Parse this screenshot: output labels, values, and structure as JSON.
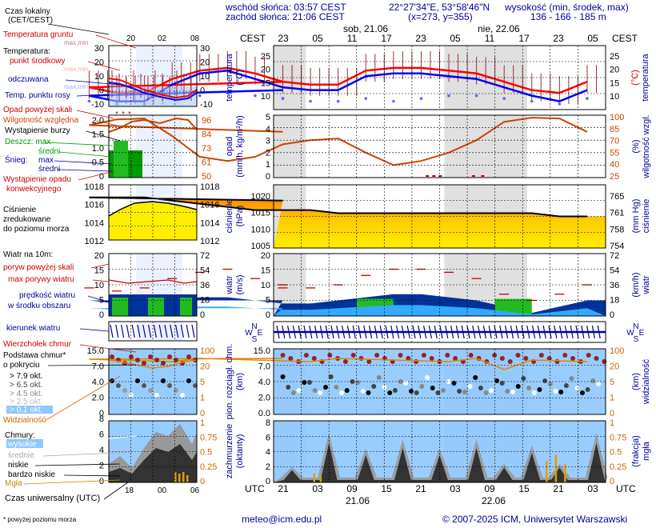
{
  "header": {
    "sunrise": "wschód słońca: 03:57 CEST",
    "sunset": "zachód słońca: 21:06 CEST",
    "coords": "22°27'34\"E, 53°58'46\"N",
    "grid": "(x=273, y=355)",
    "altitude_title": "wysokość (min, środek, max)",
    "altitude_values": "136 - 166 - 185 m"
  },
  "footer": {
    "note": "* powyżej poziomu morza",
    "email": "meteo@icm.edu.pl",
    "copyright": "© 2007-2025 ICM, Uniwersytet Warszawski"
  },
  "legend": {
    "czas_lokalny": "Czas lokalny",
    "cet_cest": "(CET/CEST)",
    "temp_gruntu": "Temperatura gruntu",
    "max_min": "max,min",
    "temperatura": "Temperatura:",
    "punkt_srodkowy": "punkt środkowy",
    "max_min2": "max,min",
    "odczuwana": "odczuwana",
    "max_min3": "max,min",
    "punkt_rosy": "Temp. punktu rosy",
    "opad_powyzej": "Opad powyżej skali",
    "wilgotnosc": "Wilgotność względna",
    "burza": "Wystąpienie burzy",
    "deszcz_max": "Deszcz: max",
    "deszcz_sredni": "średni",
    "snieg": "Śnieg:",
    "snieg_max": "max",
    "snieg_sredni": "średni",
    "wystapienie_opadu": "Wystąpienie opadu",
    "konwekcyjnego": "konwekcyjnego",
    "cisnienie": "Ciśnienie",
    "zredukowane": "zredukowane",
    "do_poziomu": "do poziomu morza",
    "wiatr_na": "Wiatr na 10m:",
    "poryw": "poryw powyżej skali",
    "max_porywy": "max porywy wiatru",
    "predkosc": "prędkość wiatru",
    "w_srodku": "w środku obszaru",
    "kierunek": "kierunek wiatru",
    "wierzcholek": "Wierzchołek chmur",
    "podstawa": "Podstawa chmur*",
    "o_pokryciu": "o pokryciu",
    "okt_79": "> 7.9 okt.",
    "okt_65": "> 6.5 okt.",
    "okt_45": "> 4.5 okt.",
    "okt_25": "> 2.5 okt.",
    "okt_01": "> 0.1 okt.",
    "widzialnosc": "Widzialność",
    "chmury": "Chmury:",
    "wysokie": "wysokie",
    "srednie": "średnie",
    "niskie": "niskie",
    "bardzo_niskie": "bardzo niskie",
    "mgla": "Mgła",
    "czas_uniwersalny": "Czas uniwersalny (UTC)"
  },
  "mini": {
    "top_hours": [
      "20",
      "02",
      "08"
    ],
    "bottom_hours": [
      "18",
      "00",
      "06"
    ],
    "temp_ticks": [
      "30",
      "20",
      "10",
      "0",
      "-10"
    ],
    "precip_ticks": [
      "2.0",
      "1.5",
      "1.0",
      "0.5",
      "0"
    ],
    "humidity_ticks": [
      "96",
      "84",
      "73",
      "61",
      "50"
    ],
    "pressure_ticks": [
      "1018",
      "1016",
      "1014",
      "1012"
    ],
    "wind_ms_ticks": [
      "20",
      "15",
      "10",
      "5",
      "0"
    ],
    "wind_kmh_ticks": [
      "72",
      "54",
      "36",
      "18",
      "0"
    ],
    "cloud_ticks": [
      "15.0",
      "7.0",
      "4.0",
      "2.0",
      "0"
    ],
    "vis_ticks": [
      "100",
      "20",
      "5",
      "1",
      "0"
    ],
    "oct_ticks": [
      "8",
      "6",
      "4",
      "2",
      "0"
    ],
    "fog_ticks": [
      "1",
      "0.75",
      "0.5",
      "0.25",
      "0"
    ]
  },
  "main": {
    "cest": "CEST",
    "utc": "UTC",
    "day1": "sob, 21.06",
    "day2": "nie, 22.06",
    "top_hours": [
      "23",
      "05",
      "11",
      "17",
      "23",
      "05",
      "11",
      "17",
      "23",
      "05"
    ],
    "bottom_hours": [
      "21",
      "03",
      "09",
      "15",
      "21",
      "03",
      "09",
      "15",
      "21",
      "03"
    ],
    "date1": "21.06",
    "date2": "22.06",
    "y_labels": {
      "temp_l1": "temperatura",
      "temp_l2": "(°C)",
      "temp_r1": "temperatura",
      "temp_r2": "(°C)",
      "precip_l1": "opad",
      "precip_l2": "(mm/h, kg/m²/h)",
      "precip_r1": "wilgotność wzgl.",
      "precip_r2": "(%)",
      "press_l1": "ciśnienie",
      "press_l2": "(hPa)",
      "press_r1": "ciśnienie",
      "press_r2": "(mm Hg)",
      "wind_l1": "wiatr",
      "wind_l2": "(m/s)",
      "wind_r1": "wiatr",
      "wind_r2": "(km/h)",
      "cloud_l1": "pion. rozciągł. chm.",
      "cloud_l2": "(km)",
      "cloud_r1": "widzialność",
      "cloud_r2": "(km)",
      "cov_l1": "zachmurzenie",
      "cov_l2": "(oktanty)",
      "cov_r1": "mgła",
      "cov_r2": "(frakcja)"
    },
    "compass": {
      "n": "N",
      "w": "W",
      "e": "E",
      "s": "S"
    }
  },
  "colors": {
    "night_band": "#e0e0e0",
    "temp_main": "#ff0000",
    "temp_feels": "#0000ff",
    "humidity": "#cc4400",
    "pressure_line": "#000000",
    "wind_dark": "#003399",
    "wind_green": "#22bb22",
    "sky": "#8ec8ff",
    "cloud_dark": "#333333",
    "label_red": "#cc0000",
    "label_blue": "#000099",
    "label_green": "#009900",
    "label_orange": "#cc6600"
  },
  "chart_data": [
    {
      "type": "line",
      "panel": "temperature",
      "x_utc_hours": [
        21,
        0,
        3,
        6,
        9,
        12,
        15,
        18,
        21,
        24,
        27,
        30,
        33,
        36,
        39,
        42,
        45,
        48,
        51,
        54
      ],
      "series": [
        {
          "name": "punkt środkowy",
          "values": [
            15,
            13,
            11,
            11,
            16,
            19,
            20,
            18,
            15,
            14,
            14,
            19,
            20,
            20,
            19,
            18,
            15,
            12,
            11,
            15
          ]
        },
        {
          "name": "odczuwana",
          "values": [
            12,
            10,
            8,
            8,
            14,
            18,
            19,
            16,
            13,
            12,
            12,
            17,
            18,
            18,
            17,
            16,
            13,
            10,
            8,
            12
          ]
        },
        {
          "name": "Temp. punktu rosy",
          "values": [
            9,
            8,
            7,
            7,
            9,
            10,
            11,
            10,
            9,
            8,
            8,
            9,
            8,
            9,
            10,
            10,
            9,
            8,
            7,
            9
          ]
        }
      ],
      "ylim": [
        5,
        28
      ]
    },
    {
      "type": "line",
      "panel": "humidity",
      "x_utc_hours": [
        21,
        0,
        3,
        6,
        9,
        12,
        15,
        18,
        21,
        24,
        27,
        30,
        33,
        36,
        39,
        42,
        45,
        48,
        51,
        54
      ],
      "series": [
        {
          "name": "Wilgotność względna",
          "values": [
            80,
            88,
            95,
            96,
            75,
            50,
            45,
            50,
            65,
            70,
            72,
            55,
            40,
            45,
            55,
            70,
            92,
            97,
            96,
            80
          ]
        }
      ],
      "ylim": [
        25,
        100
      ]
    },
    {
      "type": "area",
      "panel": "pressure",
      "x_utc_hours": [
        21,
        0,
        3,
        6,
        9,
        12,
        15,
        18,
        21,
        24,
        27,
        30,
        33,
        36,
        39,
        42,
        45,
        48,
        51,
        54
      ],
      "series": [
        {
          "name": "Ciśnienie",
          "values": [
            1020,
            1021,
            1021,
            1021,
            1020,
            1019,
            1018,
            1017,
            1017,
            1017,
            1016,
            1016,
            1016,
            1016,
            1016,
            1016,
            1016,
            1016,
            1015,
            1015
          ]
        }
      ],
      "ylim": [
        1005,
        1025
      ]
    },
    {
      "type": "area",
      "panel": "wind",
      "x_utc_hours": [
        21,
        0,
        3,
        6,
        9,
        12,
        15,
        18,
        21,
        24,
        27,
        30,
        33,
        36,
        39,
        42,
        45,
        48,
        51,
        54
      ],
      "series": [
        {
          "name": "prędkość wiatru",
          "values": [
            5,
            5,
            4,
            4,
            5,
            6,
            6,
            5,
            4,
            4,
            5,
            6,
            7,
            7,
            6,
            5,
            3,
            1,
            3,
            5
          ]
        },
        {
          "name": "max porywy wiatru",
          "values": [
            10,
            9,
            8,
            9,
            12,
            14,
            15,
            12,
            9,
            9,
            10,
            13,
            15,
            15,
            14,
            12,
            7,
            5,
            7,
            10
          ]
        }
      ],
      "ylim": [
        0,
        20
      ]
    }
  ]
}
